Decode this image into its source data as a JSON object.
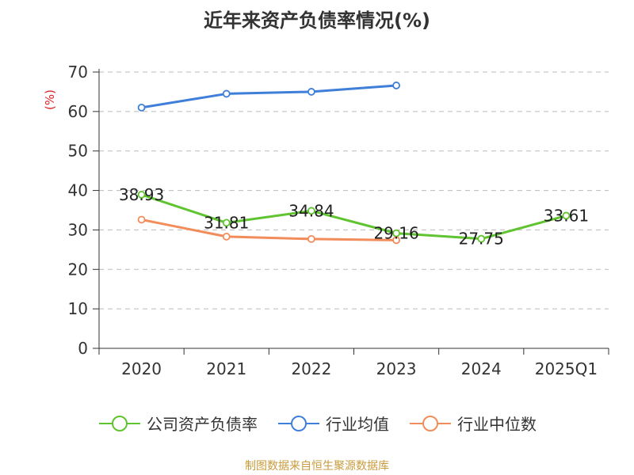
{
  "chart_data": {
    "type": "line",
    "title": "近年来资产负债率情况(%)",
    "ylabel": "(%)",
    "categories": [
      "2020",
      "2021",
      "2022",
      "2023",
      "2024",
      "2025Q1"
    ],
    "ylim": [
      0,
      70
    ],
    "yticks": [
      0,
      10,
      20,
      30,
      40,
      50,
      60,
      70
    ],
    "grid": true,
    "legend_position": "bottom",
    "series": [
      {
        "name": "公司资产负债率",
        "color": "#5fc430",
        "values": [
          38.93,
          31.81,
          34.84,
          29.16,
          27.75,
          33.61
        ],
        "labels": [
          "38.93",
          "31.81",
          "34.84",
          "29.16",
          "27.75",
          "33.61"
        ]
      },
      {
        "name": "行业均值",
        "color": "#3f7fd9",
        "values": [
          61.0,
          64.5,
          65.0,
          66.6,
          null,
          null
        ]
      },
      {
        "name": "行业中位数",
        "color": "#f28c5a",
        "values": [
          32.6,
          28.3,
          27.7,
          27.4,
          null,
          null
        ]
      }
    ]
  },
  "footer": {
    "source": "制图数据来自恒生聚源数据库"
  }
}
